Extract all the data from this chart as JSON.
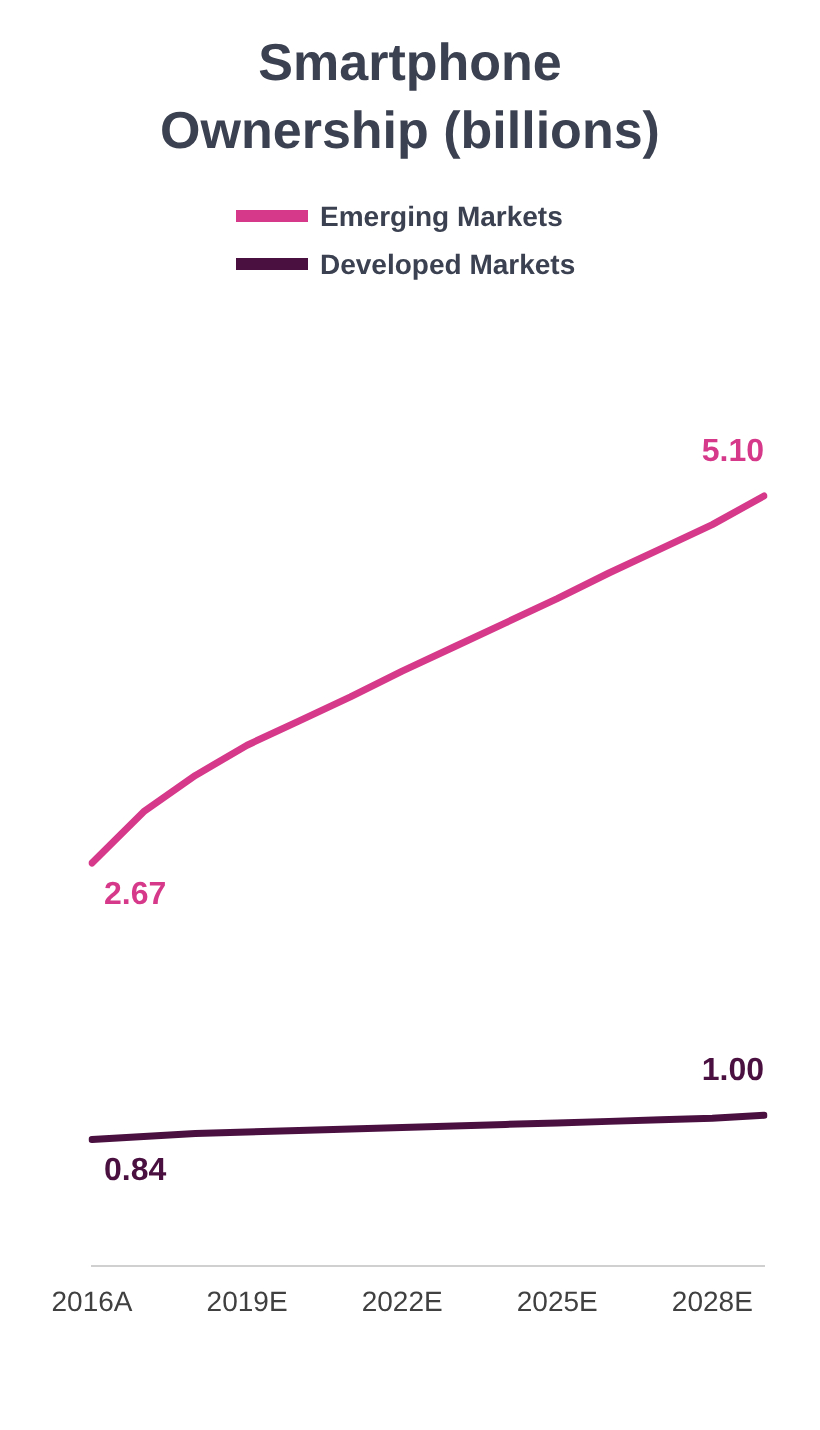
{
  "chart_data": {
    "type": "line",
    "title": "Smartphone Ownership (billions)",
    "categories": [
      "2016A",
      null,
      null,
      "2019E",
      null,
      null,
      "2022E",
      null,
      null,
      "2025E",
      null,
      null,
      "2028E",
      null
    ],
    "series": [
      {
        "name": "Emerging Markets",
        "color": "#d6398a",
        "values": [
          2.67,
          3.01,
          3.25,
          3.45,
          3.61,
          3.77,
          3.94,
          4.1,
          4.26,
          4.42,
          4.59,
          4.75,
          4.91,
          5.1
        ],
        "value_labels": [
          "2.67",
          null,
          null,
          null,
          null,
          null,
          null,
          null,
          null,
          null,
          null,
          null,
          null,
          "5.10"
        ]
      },
      {
        "name": "Developed Markets",
        "color": "#4a1040",
        "values": [
          0.84,
          0.86,
          0.88,
          0.89,
          0.9,
          0.91,
          0.92,
          0.93,
          0.94,
          0.95,
          0.96,
          0.97,
          0.98,
          1.0
        ],
        "value_labels": [
          "0.84",
          null,
          null,
          null,
          null,
          null,
          null,
          null,
          null,
          null,
          null,
          null,
          null,
          "1.00"
        ]
      }
    ],
    "tick_labels": "x",
    "grid": false,
    "legend": "top",
    "marker": "none",
    "line_style": "solid"
  }
}
